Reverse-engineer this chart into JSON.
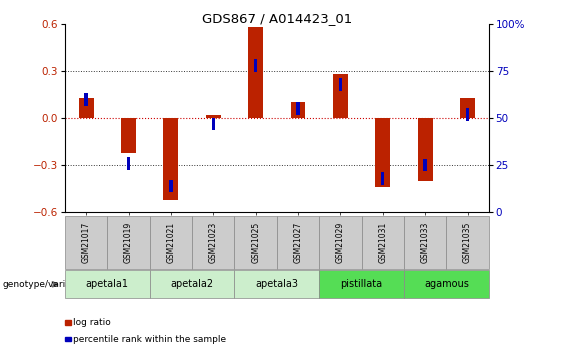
{
  "title": "GDS867 / A014423_01",
  "samples": [
    "GSM21017",
    "GSM21019",
    "GSM21021",
    "GSM21023",
    "GSM21025",
    "GSM21027",
    "GSM21029",
    "GSM21031",
    "GSM21033",
    "GSM21035"
  ],
  "log_ratio": [
    0.13,
    -0.22,
    -0.52,
    0.02,
    0.58,
    0.1,
    0.28,
    -0.44,
    -0.4,
    0.13
  ],
  "percentile_rank": [
    60,
    26,
    14,
    47,
    78,
    55,
    68,
    18,
    25,
    52
  ],
  "ylim_left": [
    -0.6,
    0.6
  ],
  "ylim_right": [
    0,
    100
  ],
  "yticks_left": [
    -0.6,
    -0.3,
    0.0,
    0.3,
    0.6
  ],
  "yticks_right": [
    0,
    25,
    50,
    75,
    100
  ],
  "bar_color_red": "#BB2200",
  "bar_color_blue": "#0000BB",
  "zero_line_color": "#CC0000",
  "dotted_line_color": "#333333",
  "groups": [
    {
      "label": "apetala1",
      "samples": [
        0,
        1
      ],
      "color": "#CCEECC"
    },
    {
      "label": "apetala2",
      "samples": [
        2,
        3
      ],
      "color": "#CCEECC"
    },
    {
      "label": "apetala3",
      "samples": [
        4,
        5
      ],
      "color": "#CCEECC"
    },
    {
      "label": "pistillata",
      "samples": [
        6,
        7
      ],
      "color": "#55DD55"
    },
    {
      "label": "agamous",
      "samples": [
        8,
        9
      ],
      "color": "#55DD55"
    }
  ],
  "legend_items": [
    {
      "label": "log ratio",
      "color": "#BB2200"
    },
    {
      "label": "percentile rank within the sample",
      "color": "#0000BB"
    }
  ],
  "bar_width": 0.35,
  "blue_square_size": 0.08,
  "sample_box_color": "#CCCCCC",
  "sample_box_edge": "#888888"
}
